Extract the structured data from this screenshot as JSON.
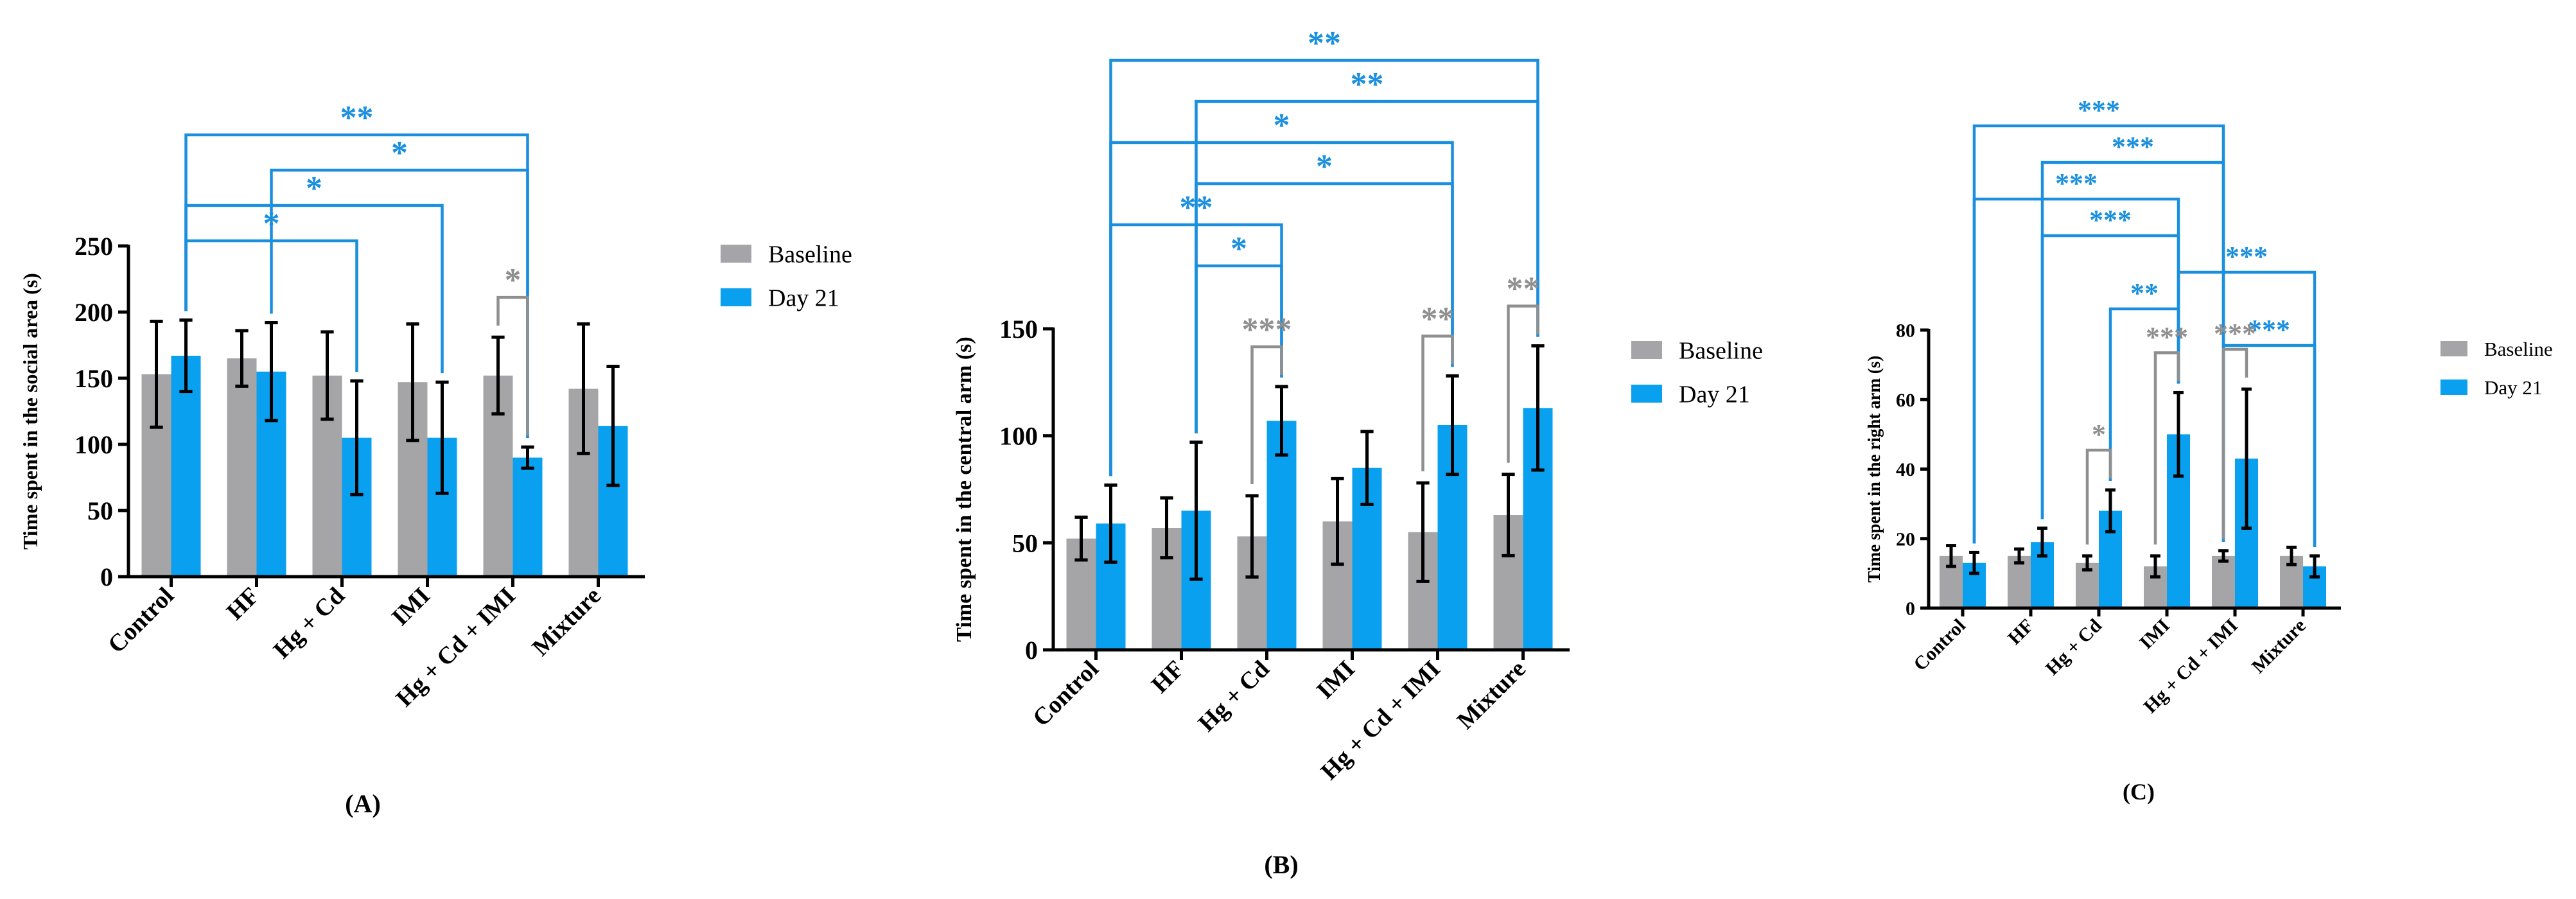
{
  "colors": {
    "baseline": "#a5a5a8",
    "day21": "#0aa0f0",
    "sig_blue": "#1a8fde",
    "sig_gray": "#8f8f8f"
  },
  "chart_data": [
    {
      "type": "bar",
      "panel_label": "(A)",
      "title": "",
      "xlabel": "",
      "ylabel": "Time spent in the social area (s)",
      "ylim": [
        0,
        250
      ],
      "yticks": [
        0,
        50,
        100,
        150,
        200,
        250
      ],
      "categories": [
        "Control",
        "HF",
        "Hg + Cd",
        "IMI",
        "Hg + Cd + IMI",
        "Mixture"
      ],
      "legend": [
        "Baseline",
        "Day 21"
      ],
      "series": [
        {
          "name": "Baseline",
          "values": [
            153,
            165,
            152,
            147,
            152,
            142
          ],
          "errors": [
            40,
            21,
            33,
            44,
            29,
            49
          ]
        },
        {
          "name": "Day 21",
          "values": [
            167,
            155,
            105,
            105,
            90,
            114
          ],
          "errors": [
            27,
            37,
            43,
            42,
            8,
            45
          ]
        }
      ],
      "annotations": [
        {
          "text": "**",
          "from": 0,
          "to": 4,
          "series": [
            1,
            1
          ],
          "sig": "blue"
        },
        {
          "text": "*",
          "from": 1,
          "to": 4,
          "series": [
            1,
            1
          ],
          "sig": "blue"
        },
        {
          "text": "*",
          "from": 0,
          "to": 3,
          "series": [
            1,
            1
          ],
          "sig": "blue"
        },
        {
          "text": "*",
          "from": 0,
          "to": 2,
          "series": [
            1,
            1
          ],
          "sig": "blue"
        },
        {
          "text": "*",
          "from": 4,
          "to": 4,
          "series": [
            0,
            1
          ],
          "sig": "gray"
        }
      ]
    },
    {
      "type": "bar",
      "panel_label": "(B)",
      "title": "",
      "xlabel": "",
      "ylabel": "Time spent in the central arm (s)",
      "ylim": [
        0,
        150
      ],
      "yticks": [
        0,
        50,
        100,
        150
      ],
      "categories": [
        "Control",
        "HF",
        "Hg + Cd",
        "IMI",
        "Hg + Cd + IMI",
        "Mixture"
      ],
      "legend": [
        "Baseline",
        "Day 21"
      ],
      "series": [
        {
          "name": "Baseline",
          "values": [
            52,
            57,
            53,
            60,
            55,
            63
          ],
          "errors": [
            10,
            14,
            19,
            20,
            23,
            19
          ]
        },
        {
          "name": "Day 21",
          "values": [
            59,
            65,
            107,
            85,
            105,
            113
          ],
          "errors": [
            18,
            32,
            16,
            17,
            23,
            29
          ]
        }
      ],
      "annotations": [
        {
          "text": "**",
          "from": 0,
          "to": 5,
          "series": [
            1,
            1
          ],
          "sig": "blue"
        },
        {
          "text": "**",
          "from": 1,
          "to": 5,
          "series": [
            1,
            1
          ],
          "sig": "blue"
        },
        {
          "text": "*",
          "from": 0,
          "to": 4,
          "series": [
            1,
            1
          ],
          "sig": "blue"
        },
        {
          "text": "*",
          "from": 1,
          "to": 4,
          "series": [
            1,
            1
          ],
          "sig": "blue"
        },
        {
          "text": "**",
          "from": 0,
          "to": 2,
          "series": [
            1,
            1
          ],
          "sig": "blue"
        },
        {
          "text": "*",
          "from": 1,
          "to": 2,
          "series": [
            1,
            1
          ],
          "sig": "blue"
        },
        {
          "text": "***",
          "from": 2,
          "to": 2,
          "series": [
            0,
            1
          ],
          "sig": "gray"
        },
        {
          "text": "**",
          "from": 4,
          "to": 4,
          "series": [
            0,
            1
          ],
          "sig": "gray"
        },
        {
          "text": "**",
          "from": 5,
          "to": 5,
          "series": [
            0,
            1
          ],
          "sig": "gray"
        }
      ]
    },
    {
      "type": "bar",
      "panel_label": "(C)",
      "title": "",
      "xlabel": "",
      "ylabel": "Time spent in the right arm (s)",
      "ylim": [
        0,
        80
      ],
      "yticks": [
        0,
        20,
        40,
        60,
        80
      ],
      "categories": [
        "Control",
        "HF",
        "Hg + Cd",
        "IMI",
        "Hg + Cd + IMI",
        "Mixture"
      ],
      "legend": [
        "Baseline",
        "Day 21"
      ],
      "series": [
        {
          "name": "Baseline",
          "values": [
            15,
            15,
            13,
            12,
            15,
            15
          ],
          "errors": [
            3,
            2,
            2,
            3,
            1.5,
            2.5
          ]
        },
        {
          "name": "Day 21",
          "values": [
            13,
            19,
            28,
            50,
            43,
            12
          ],
          "errors": [
            3,
            4,
            6,
            12,
            20,
            3
          ]
        }
      ],
      "annotations": [
        {
          "text": "***",
          "from": 0,
          "to": 4,
          "series": [
            1,
            0
          ],
          "sig": "blue"
        },
        {
          "text": "***",
          "from": 1,
          "to": 4,
          "series": [
            1,
            0
          ],
          "sig": "blue"
        },
        {
          "text": "***",
          "from": 0,
          "to": 3,
          "series": [
            1,
            1
          ],
          "sig": "blue"
        },
        {
          "text": "***",
          "from": 1,
          "to": 3,
          "series": [
            1,
            1
          ],
          "sig": "blue"
        },
        {
          "text": "***",
          "from": 3,
          "to": 5,
          "series": [
            1,
            1
          ],
          "sig": "blue"
        },
        {
          "text": "**",
          "from": 2,
          "to": 3,
          "series": [
            1,
            1
          ],
          "sig": "blue"
        },
        {
          "text": "***",
          "from": 4,
          "to": 5,
          "series": [
            0,
            1
          ],
          "sig": "blue"
        },
        {
          "text": "***",
          "from": 3,
          "to": 3,
          "series": [
            0,
            1
          ],
          "sig": "gray"
        },
        {
          "text": "***",
          "from": 4,
          "to": 4,
          "series": [
            0,
            1
          ],
          "sig": "gray"
        },
        {
          "text": "*",
          "from": 2,
          "to": 2,
          "series": [
            0,
            1
          ],
          "sig": "gray"
        }
      ]
    }
  ]
}
